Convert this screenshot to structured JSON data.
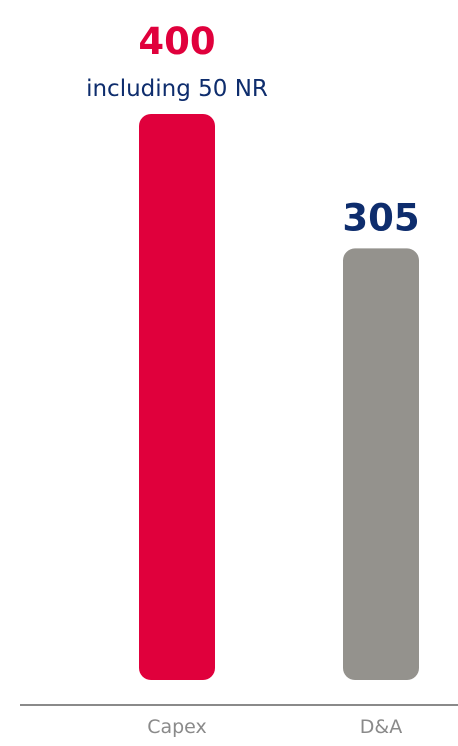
{
  "chart_data": {
    "type": "bar",
    "categories": [
      "Capex",
      "D&A"
    ],
    "values": [
      400,
      305
    ],
    "annotations": [
      "including 50 NR",
      ""
    ],
    "colors": [
      "#e0003c",
      "#94928d"
    ],
    "value_label_colors": [
      "#e0003c",
      "#0e2d6d"
    ],
    "annotation_color": "#0e2d6d",
    "tick_label_color": "#8a8a8a",
    "axis_color": "#8a8a8a",
    "ylim": [
      0,
      400
    ],
    "grid": false,
    "legend": "none"
  }
}
